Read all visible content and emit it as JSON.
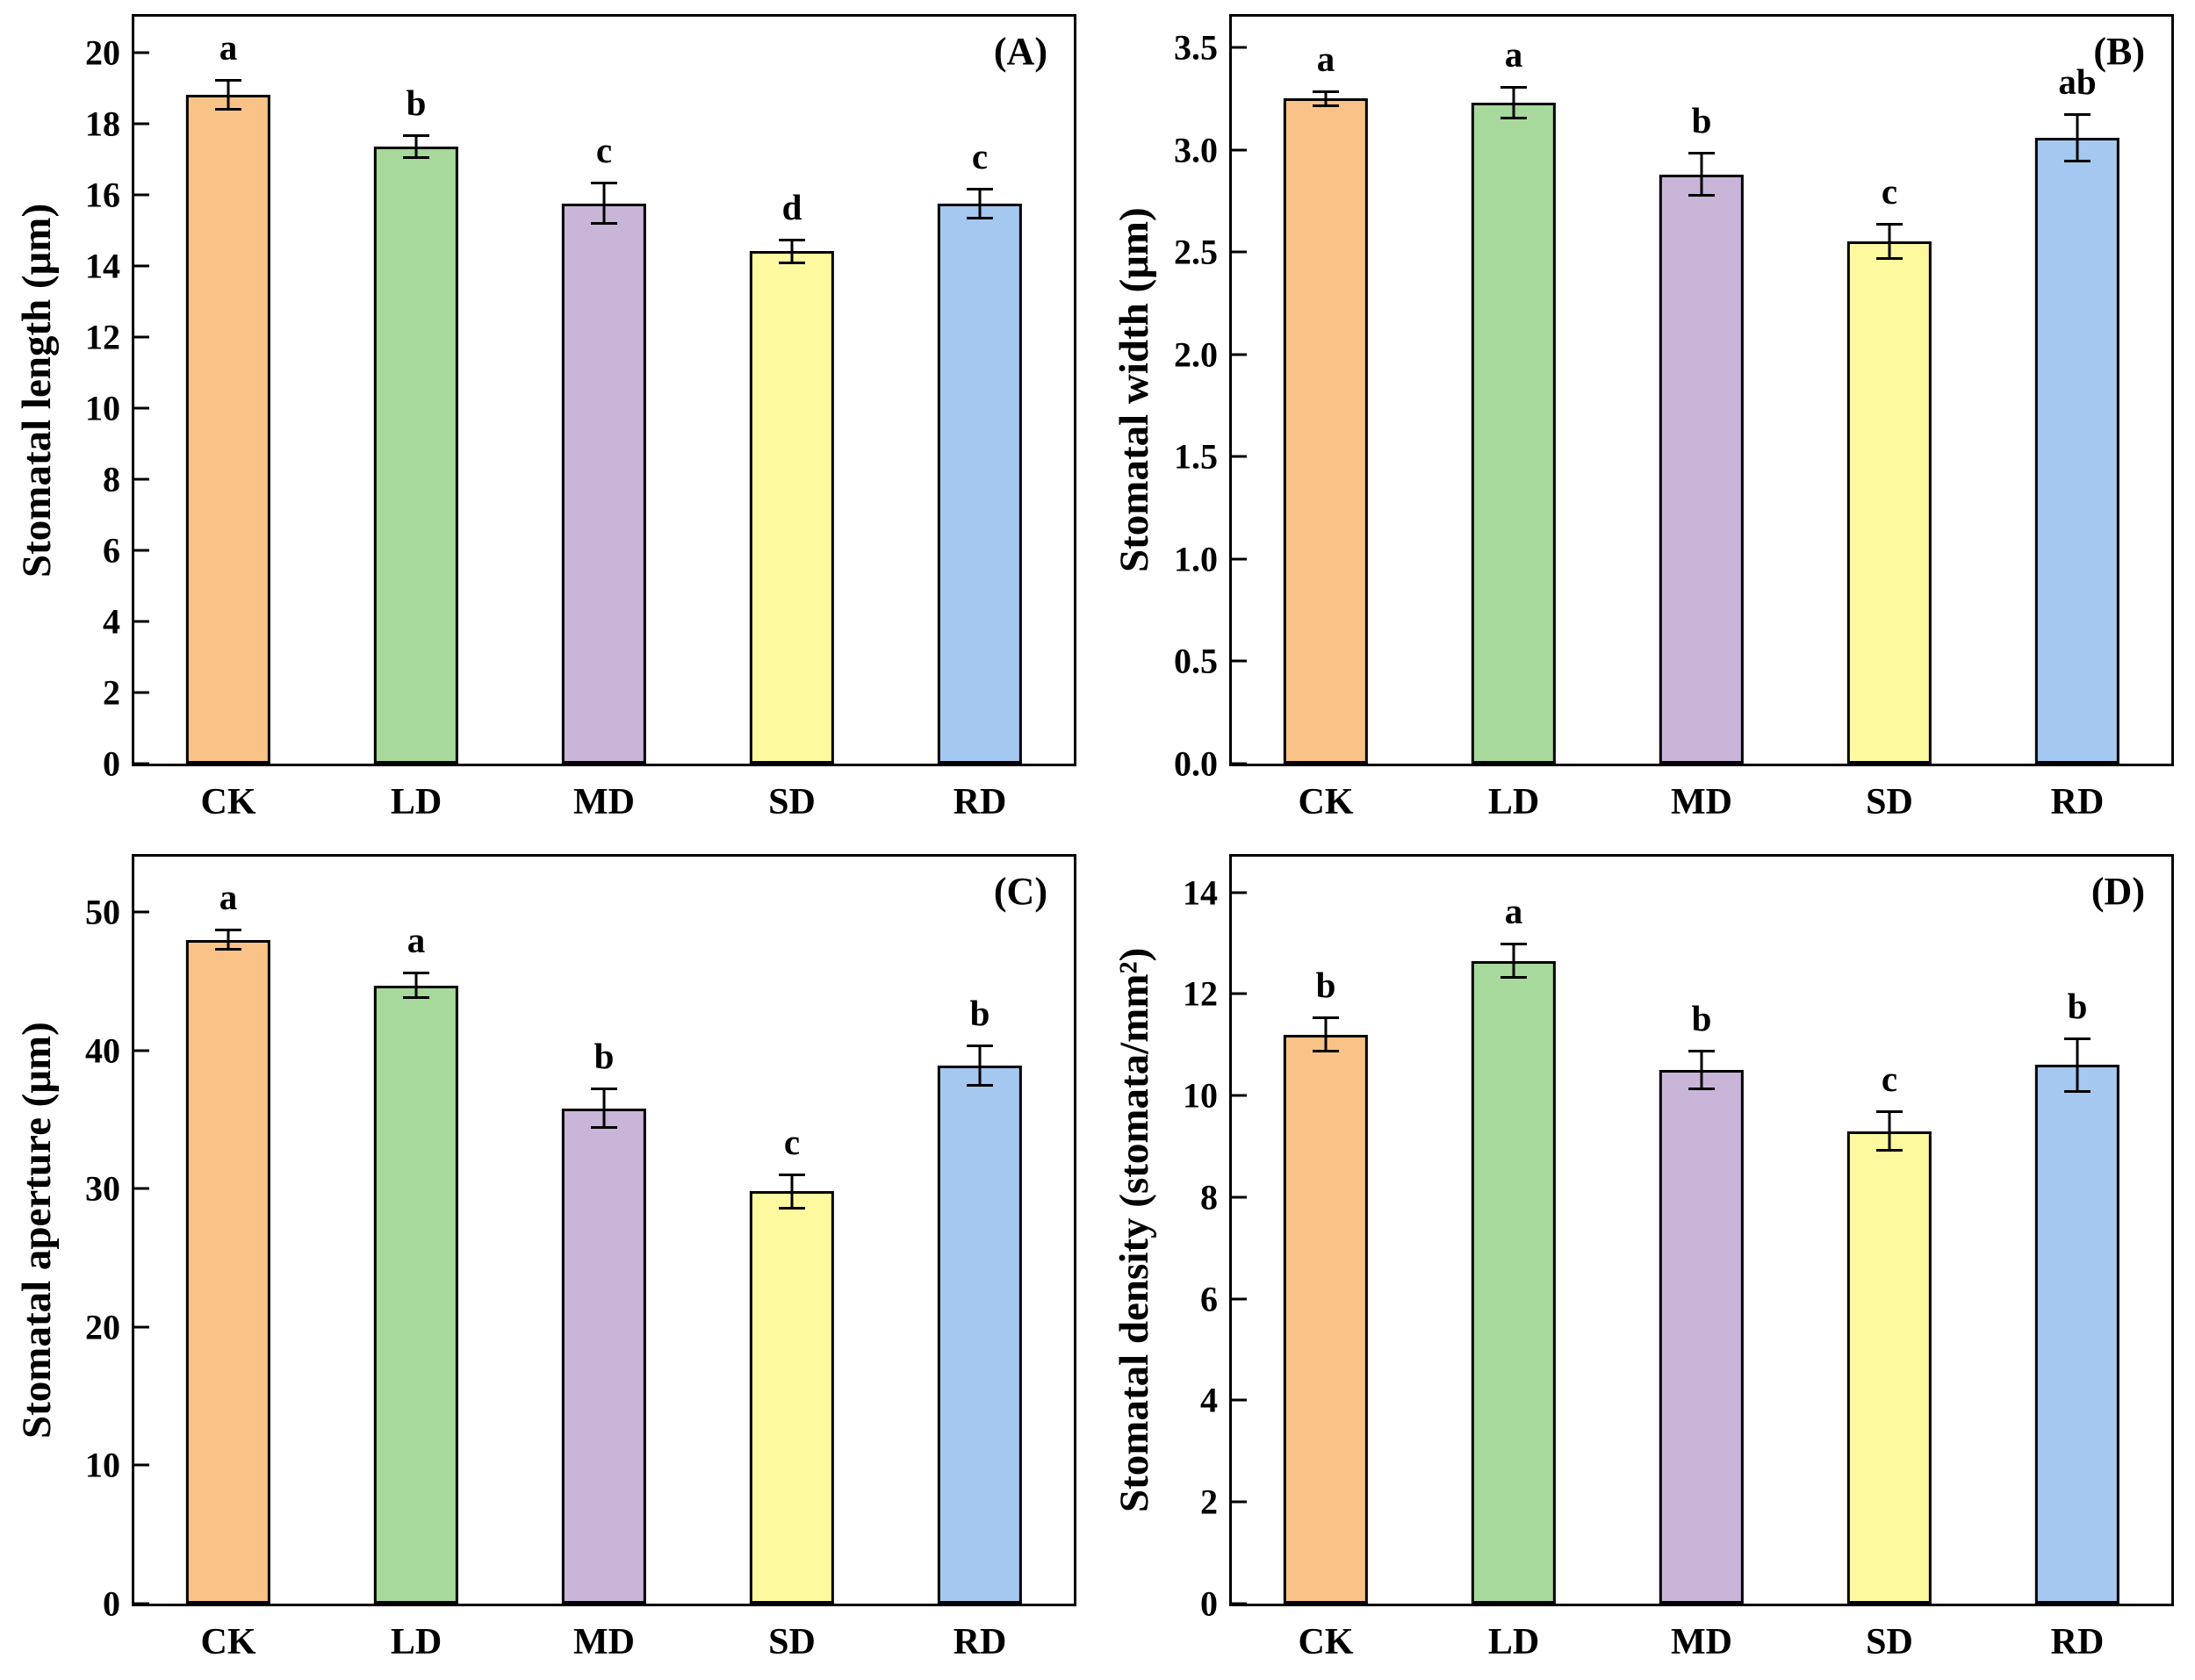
{
  "bar_colors": [
    "#F9C388",
    "#A6D99B",
    "#C8B5D8",
    "#FCF99F",
    "#A5C8F0"
  ],
  "bar_border_color": "#000000",
  "chart_data": [
    {
      "type": "bar",
      "panel_label": "(A)",
      "ylabel": "Stomatal length (μm)",
      "xlabel": "",
      "categories": [
        "CK",
        "LD",
        "MD",
        "SD",
        "RD"
      ],
      "values": [
        18.8,
        17.35,
        15.75,
        14.4,
        15.75
      ],
      "errors": [
        0.45,
        0.35,
        0.6,
        0.35,
        0.45
      ],
      "letters": [
        "a",
        "b",
        "c",
        "d",
        "c"
      ],
      "ylim": [
        0,
        21
      ],
      "yticks": {
        "from": 0,
        "to": 20,
        "step": 2,
        "decimals": 0
      },
      "grid": false,
      "legend": "none"
    },
    {
      "type": "bar",
      "panel_label": "(B)",
      "ylabel": "Stomatal width (μm)",
      "xlabel": "",
      "categories": [
        "CK",
        "LD",
        "MD",
        "SD",
        "RD"
      ],
      "values": [
        3.25,
        3.23,
        2.88,
        2.55,
        3.06
      ],
      "errors": [
        0.04,
        0.08,
        0.11,
        0.09,
        0.12
      ],
      "letters": [
        "a",
        "a",
        "b",
        "c",
        "ab"
      ],
      "ylim": [
        0,
        3.65
      ],
      "yticks": {
        "from": 0,
        "to": 3.5,
        "step": 0.5,
        "decimals": 1
      },
      "grid": false,
      "legend": "none"
    },
    {
      "type": "bar",
      "panel_label": "(C)",
      "ylabel": "Stomatal aperture (μm)",
      "xlabel": "",
      "categories": [
        "CK",
        "LD",
        "MD",
        "SD",
        "RD"
      ],
      "values": [
        48.0,
        44.7,
        35.8,
        29.8,
        38.9
      ],
      "errors": [
        0.8,
        1.0,
        1.5,
        1.3,
        1.5
      ],
      "letters": [
        "a",
        "a",
        "b",
        "c",
        "b"
      ],
      "ylim": [
        0,
        54
      ],
      "yticks": {
        "from": 0,
        "to": 50,
        "step": 10,
        "decimals": 0
      },
      "grid": false,
      "legend": "none"
    },
    {
      "type": "bar",
      "panel_label": "(D)",
      "ylabel": "Stomatal density (stomata/mm²)",
      "xlabel": "",
      "categories": [
        "CK",
        "LD",
        "MD",
        "SD",
        "RD"
      ],
      "values": [
        11.2,
        12.65,
        10.5,
        9.3,
        10.6
      ],
      "errors": [
        0.35,
        0.35,
        0.4,
        0.4,
        0.55
      ],
      "letters": [
        "b",
        "a",
        "b",
        "c",
        "b"
      ],
      "ylim": [
        0,
        14.7
      ],
      "yticks": {
        "from": 0,
        "to": 14,
        "step": 2,
        "decimals": 0
      },
      "grid": false,
      "legend": "none"
    }
  ]
}
